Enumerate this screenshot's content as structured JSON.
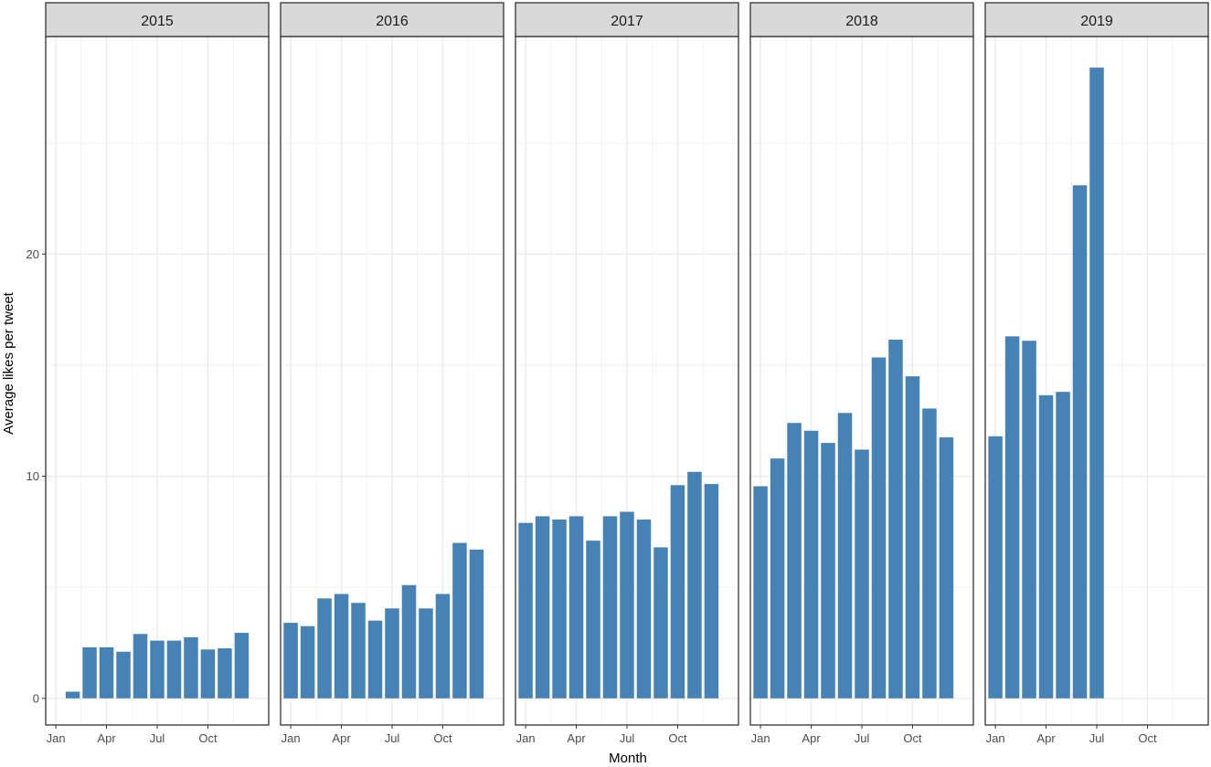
{
  "chart_data": {
    "type": "bar",
    "facet_by": "year",
    "xlabel": "Month",
    "ylabel": "Average likes per tweet",
    "x_tick_labels": [
      "Jan",
      "Apr",
      "Jul",
      "Oct"
    ],
    "y_ticks": [
      0,
      10,
      20
    ],
    "ylim": [
      -1.2,
      29.8
    ],
    "grid": true,
    "bar_color": "#4682b4",
    "strip_color": "#d9d9d9",
    "facets": [
      {
        "label": "2015",
        "months": [
          2,
          3,
          4,
          5,
          6,
          7,
          8,
          9,
          10,
          11,
          12
        ],
        "values": [
          0.3,
          2.3,
          2.3,
          2.1,
          2.9,
          2.6,
          2.6,
          2.75,
          2.2,
          2.25,
          2.95
        ]
      },
      {
        "label": "2016",
        "months": [
          1,
          2,
          3,
          4,
          5,
          6,
          7,
          8,
          9,
          10,
          11,
          12
        ],
        "values": [
          3.4,
          3.25,
          4.5,
          4.7,
          4.3,
          3.5,
          4.05,
          5.1,
          4.05,
          4.7,
          7.0,
          6.7
        ]
      },
      {
        "label": "2017",
        "months": [
          1,
          2,
          3,
          4,
          5,
          6,
          7,
          8,
          9,
          10,
          11,
          12
        ],
        "values": [
          7.9,
          8.2,
          8.05,
          8.2,
          7.1,
          8.2,
          8.4,
          8.05,
          6.8,
          9.6,
          10.2,
          9.65
        ]
      },
      {
        "label": "2018",
        "months": [
          1,
          2,
          3,
          4,
          5,
          6,
          7,
          8,
          9,
          10,
          11,
          12
        ],
        "values": [
          9.55,
          10.8,
          12.4,
          12.05,
          11.5,
          12.85,
          11.2,
          15.35,
          16.15,
          14.5,
          13.05,
          11.75
        ]
      },
      {
        "label": "2019",
        "months": [
          1,
          2,
          3,
          4,
          5,
          6,
          7
        ],
        "values": [
          11.8,
          16.3,
          16.1,
          13.65,
          13.8,
          23.1,
          28.4
        ]
      }
    ]
  }
}
